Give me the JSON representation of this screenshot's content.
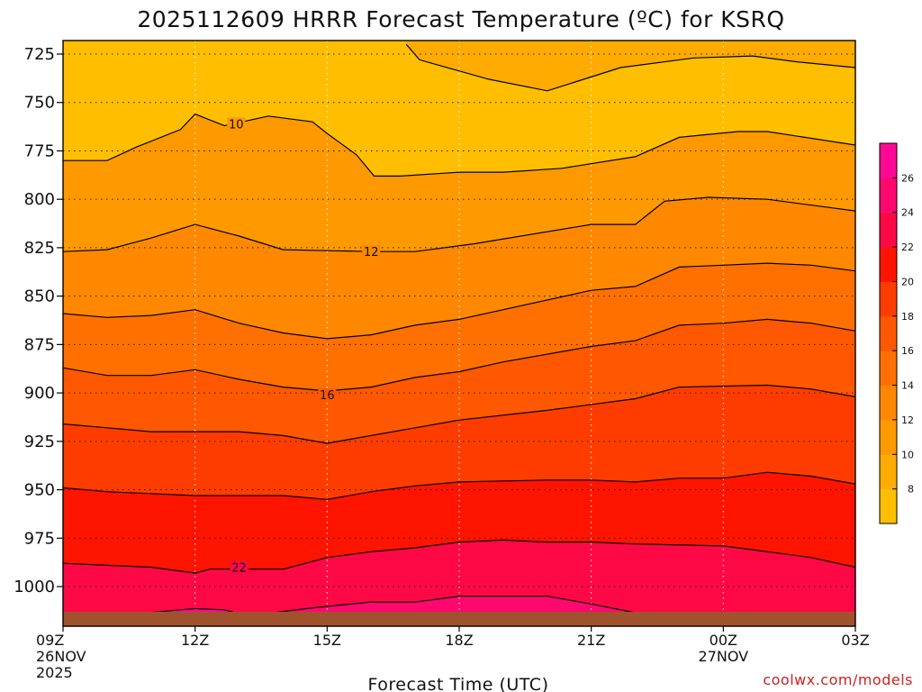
{
  "chart_data": {
    "type": "heatmap",
    "title": "2025112609 HRRR Forecast Temperature (ºC) for KSRQ",
    "xlabel": "Forecast Time (UTC)",
    "ylabel": "",
    "credit": "coolwx.com/models",
    "x_hours": [
      0,
      48
    ],
    "x_ticks": [
      {
        "hour": 0,
        "lines": [
          "09Z",
          "26NOV",
          "2025"
        ]
      },
      {
        "hour": 9,
        "lines": [
          "12Z"
        ]
      },
      {
        "hour": 18,
        "lines": [
          "15Z"
        ]
      },
      {
        "hour": 27,
        "lines": [
          "18Z"
        ]
      },
      {
        "hour": 36,
        "lines": [
          "21Z"
        ]
      },
      {
        "hour": 45,
        "lines": [
          "00Z",
          "27NOV"
        ]
      },
      {
        "hour": 54,
        "lines": [
          "03Z"
        ]
      }
    ],
    "y_axis": {
      "type": "pressure_hPa",
      "range": [
        720,
        1014
      ],
      "ticks": [
        725,
        750,
        775,
        800,
        825,
        850,
        875,
        900,
        925,
        950,
        975,
        1000
      ]
    },
    "ground_level_hPa": 1014,
    "colorbar": {
      "levels": [
        6,
        8,
        10,
        12,
        14,
        16,
        18,
        20,
        22,
        24,
        26,
        28
      ],
      "tick_labels": [
        "8",
        "10",
        "12",
        "14",
        "16",
        "18",
        "20",
        "22",
        "24",
        "26"
      ],
      "colors": [
        "#ffbf00",
        "#ffab00",
        "#ff9900",
        "#ff8800",
        "#ff7000",
        "#ff5800",
        "#ff3c00",
        "#ff1400",
        "#ff0846",
        "#ff0870",
        "#ff0896"
      ]
    },
    "contours": [
      {
        "level": 8,
        "points": [
          [
            23.4,
            720
          ],
          [
            24.3,
            728
          ],
          [
            29,
            738
          ],
          [
            33,
            744
          ],
          [
            38,
            732
          ],
          [
            43,
            727
          ],
          [
            47,
            726
          ],
          [
            50,
            729
          ],
          [
            54,
            732
          ]
        ]
      },
      {
        "level": 10,
        "points": [
          [
            0,
            780
          ],
          [
            3,
            780
          ],
          [
            5,
            773
          ],
          [
            8,
            764
          ],
          [
            9,
            756
          ],
          [
            10,
            759
          ],
          [
            11,
            762
          ],
          [
            14,
            757
          ],
          [
            17,
            760
          ],
          [
            18,
            766
          ],
          [
            20,
            777
          ],
          [
            21.2,
            788
          ],
          [
            23,
            788
          ],
          [
            27,
            786
          ],
          [
            30,
            786
          ],
          [
            34,
            784
          ],
          [
            39,
            778
          ],
          [
            42,
            768
          ],
          [
            46,
            765
          ],
          [
            48,
            765
          ],
          [
            54,
            772
          ]
        ]
      },
      {
        "level": 12,
        "points": [
          [
            0,
            827
          ],
          [
            3,
            826
          ],
          [
            6,
            820
          ],
          [
            9,
            813
          ],
          [
            12,
            819
          ],
          [
            15,
            826
          ],
          [
            21,
            827
          ],
          [
            24,
            827
          ],
          [
            28,
            823
          ],
          [
            36,
            813
          ],
          [
            39,
            813
          ],
          [
            41,
            801
          ],
          [
            44,
            799
          ],
          [
            48,
            800
          ],
          [
            52,
            804
          ],
          [
            54,
            806
          ]
        ]
      },
      {
        "level": 14,
        "points": [
          [
            0,
            859
          ],
          [
            3,
            861
          ],
          [
            6,
            860
          ],
          [
            9,
            857
          ],
          [
            12,
            864
          ],
          [
            15,
            869
          ],
          [
            18,
            872
          ],
          [
            21,
            870
          ],
          [
            24,
            865
          ],
          [
            27,
            862
          ],
          [
            30,
            857
          ],
          [
            36,
            847
          ],
          [
            39,
            845
          ],
          [
            42,
            835
          ],
          [
            45,
            834
          ],
          [
            48,
            833
          ],
          [
            51,
            834
          ],
          [
            54,
            837
          ]
        ]
      },
      {
        "level": 16,
        "points": [
          [
            0,
            887
          ],
          [
            3,
            891
          ],
          [
            6,
            891
          ],
          [
            9,
            888
          ],
          [
            12,
            893
          ],
          [
            15,
            897
          ],
          [
            18,
            899
          ],
          [
            21,
            897
          ],
          [
            24,
            892
          ],
          [
            27,
            889
          ],
          [
            30,
            884
          ],
          [
            36,
            876
          ],
          [
            39,
            873
          ],
          [
            42,
            865
          ],
          [
            45,
            864
          ],
          [
            48,
            862
          ],
          [
            51,
            864
          ],
          [
            54,
            868
          ]
        ]
      },
      {
        "level": 18,
        "points": [
          [
            0,
            916
          ],
          [
            3,
            918
          ],
          [
            6,
            920
          ],
          [
            9,
            920
          ],
          [
            12,
            920
          ],
          [
            15,
            922
          ],
          [
            18,
            926
          ],
          [
            21,
            922
          ],
          [
            24,
            918
          ],
          [
            27,
            914
          ],
          [
            33,
            909
          ],
          [
            39,
            903
          ],
          [
            42,
            897
          ],
          [
            48,
            896
          ],
          [
            51,
            898
          ],
          [
            54,
            902
          ]
        ]
      },
      {
        "level": 20,
        "points": [
          [
            0,
            949
          ],
          [
            3,
            951
          ],
          [
            6,
            952
          ],
          [
            9,
            953
          ],
          [
            12,
            953
          ],
          [
            15,
            953
          ],
          [
            18,
            955
          ],
          [
            21,
            951
          ],
          [
            24,
            948
          ],
          [
            27,
            946
          ],
          [
            33,
            945
          ],
          [
            36,
            945
          ],
          [
            39,
            946
          ],
          [
            42,
            944
          ],
          [
            45,
            944
          ],
          [
            48,
            941
          ],
          [
            51,
            943
          ],
          [
            54,
            947
          ]
        ]
      },
      {
        "level": 22,
        "points": [
          [
            0,
            988
          ],
          [
            3,
            989
          ],
          [
            6,
            990
          ],
          [
            9,
            993
          ],
          [
            10,
            991
          ],
          [
            12,
            991
          ],
          [
            15,
            991
          ],
          [
            16,
            989
          ],
          [
            18,
            985
          ],
          [
            21,
            982
          ],
          [
            24,
            980
          ],
          [
            27,
            977
          ],
          [
            30,
            976
          ],
          [
            33,
            977
          ],
          [
            36,
            977
          ],
          [
            39,
            978
          ],
          [
            45,
            979
          ],
          [
            48,
            982
          ],
          [
            51,
            985
          ],
          [
            54,
            990
          ]
        ]
      },
      {
        "level": 24,
        "points": [
          [
            13.8,
            1014
          ],
          [
            17,
            1011
          ],
          [
            21,
            1008
          ],
          [
            24,
            1008
          ],
          [
            27,
            1005
          ],
          [
            30,
            1005
          ],
          [
            33,
            1005
          ],
          [
            36,
            1009
          ],
          [
            39,
            1013.5
          ]
        ]
      },
      {
        "level": 26,
        "points": [
          [
            5,
            1014
          ],
          [
            8,
            1012
          ],
          [
            9,
            1011.4
          ],
          [
            11,
            1012
          ],
          [
            12,
            1014
          ]
        ]
      }
    ],
    "contour_labels": [
      {
        "value": "10",
        "hour": 11.8,
        "p": 761
      },
      {
        "value": "12",
        "hour": 21,
        "p": 827
      },
      {
        "value": "16",
        "hour": 18,
        "p": 901
      },
      {
        "value": "22",
        "hour": 12,
        "p": 990
      }
    ]
  }
}
